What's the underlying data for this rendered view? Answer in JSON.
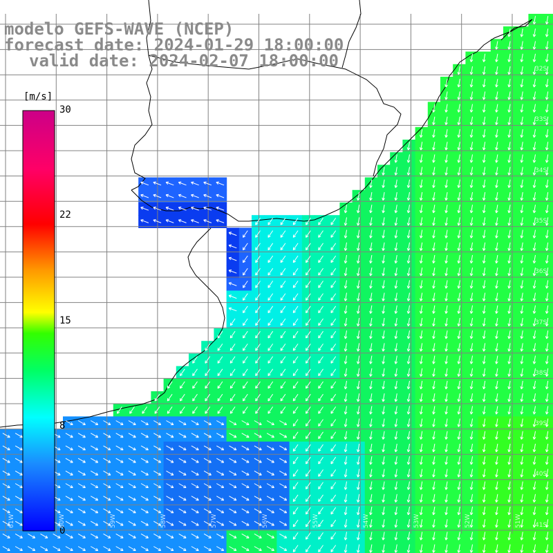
{
  "title": {
    "model": "modelo GEFS-WAVE (NCEP)",
    "forecast": "forecast date: 2024-01-29 18:00:00",
    "valid": "valid date: 2024-02-07 18:00:00"
  },
  "colorbar": {
    "unit": "[m/s]",
    "ticks": [
      "30",
      "22",
      "15",
      "8",
      "0"
    ],
    "range": [
      0,
      30
    ]
  },
  "grid": {
    "lat_labels": [
      "32S",
      "33S",
      "34S",
      "35S",
      "36S",
      "37S",
      "38S",
      "39S",
      "40S",
      "41S"
    ],
    "lon_labels": [
      "61W",
      "60W",
      "59W",
      "58W",
      "57W",
      "56W",
      "55W",
      "54W",
      "53W",
      "52W",
      "51W"
    ]
  },
  "colors": {
    "land": "#ffffff",
    "coast": "#000000",
    "grid": "#808080",
    "arrow": "#ffffff",
    "title": "#8a8a8a"
  }
}
